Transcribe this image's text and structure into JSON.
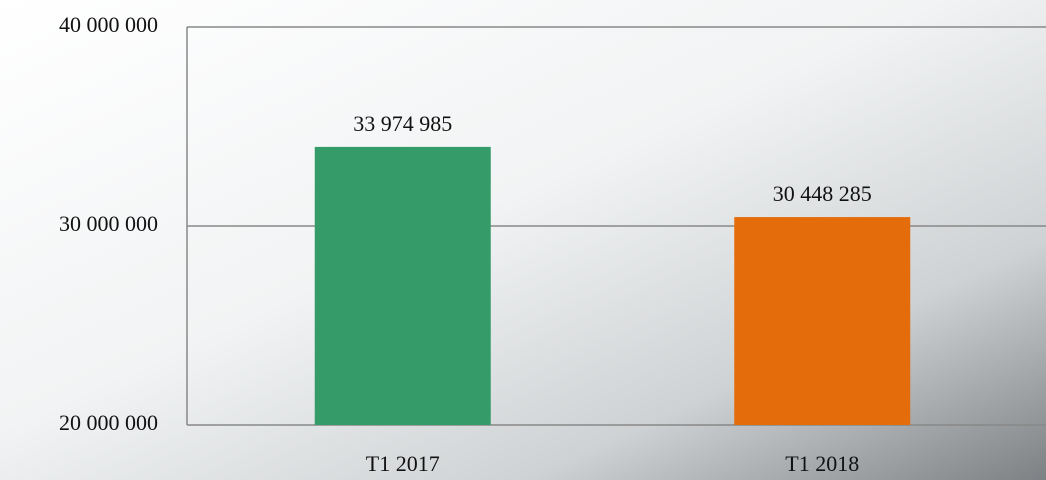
{
  "chart_data": {
    "type": "bar",
    "categories": [
      "T1 2017",
      "T1 2018"
    ],
    "values": [
      33974985,
      30448285
    ],
    "value_labels": [
      "33 974 985",
      "30 448 285"
    ],
    "colors": [
      "#359b68",
      "#e46c0a"
    ],
    "ylim": [
      20000000,
      40000000
    ],
    "yticks": [
      {
        "value": 20000000,
        "label": "20 000 000"
      },
      {
        "value": 30000000,
        "label": "30 000 000"
      },
      {
        "value": 40000000,
        "label": "40 000 000"
      }
    ],
    "grid": true
  }
}
